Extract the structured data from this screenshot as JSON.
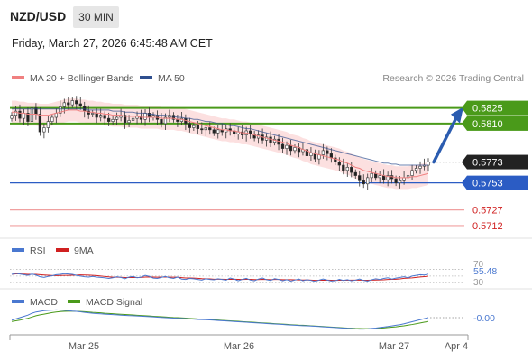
{
  "header": {
    "pair": "NZD/USD",
    "timeframe": "30 MIN",
    "datetime": "Friday, March 27, 2026 6:45:48 AM CET"
  },
  "legend": {
    "ma20_label": "MA 20 + Bollinger Bands",
    "ma20_color": "#f08080",
    "ma50_label": "MA 50",
    "ma50_color": "#2f4f8f",
    "copyright": "Research © 2026 Trading Central"
  },
  "colors": {
    "resistance": "#4a9a1a",
    "support": "#2b5cc4",
    "target_red": "#f0a0a0",
    "arrow": "#2b5cb0",
    "current_price_bg": "#222222"
  },
  "chart_data": {
    "type": "candlestick",
    "y_range": [
      0.5705,
      0.5842
    ],
    "levels": [
      {
        "label": "0.5825",
        "value": 0.5825,
        "kind": "resistance"
      },
      {
        "label": "0.5810",
        "value": 0.581,
        "kind": "resistance"
      },
      {
        "label": "0.5773",
        "value": 0.5773,
        "kind": "current"
      },
      {
        "label": "0.5753",
        "value": 0.5753,
        "kind": "support"
      },
      {
        "label": "0.5727",
        "value": 0.5727,
        "kind": "target"
      },
      {
        "label": "0.5712",
        "value": 0.5712,
        "kind": "target"
      }
    ],
    "x_labels": [
      "Mar 25",
      "Mar 26",
      "Mar 27",
      "Apr 4"
    ],
    "closes": [
      0.5818,
      0.5822,
      0.5815,
      0.582,
      0.5812,
      0.5825,
      0.5819,
      0.5802,
      0.5806,
      0.5812,
      0.5816,
      0.582,
      0.5826,
      0.583,
      0.5828,
      0.5832,
      0.5829,
      0.5827,
      0.5822,
      0.5819,
      0.582,
      0.5816,
      0.5818,
      0.5815,
      0.5812,
      0.5814,
      0.5816,
      0.5818,
      0.5811,
      0.5813,
      0.5815,
      0.5817,
      0.5814,
      0.582,
      0.5816,
      0.5818,
      0.5814,
      0.581,
      0.5816,
      0.5818,
      0.5814,
      0.5812,
      0.5815,
      0.581,
      0.5806,
      0.5808,
      0.5805,
      0.5804,
      0.5806,
      0.5804,
      0.5801,
      0.5804,
      0.5802,
      0.5805,
      0.5803,
      0.58,
      0.5802,
      0.5799,
      0.5803,
      0.58,
      0.5796,
      0.5799,
      0.5794,
      0.5797,
      0.5792,
      0.5795,
      0.579,
      0.5786,
      0.5789,
      0.5784,
      0.5787,
      0.5783,
      0.5785,
      0.5779,
      0.5782,
      0.5776,
      0.578,
      0.5784,
      0.5781,
      0.5777,
      0.5773,
      0.577,
      0.5765,
      0.5768,
      0.5763,
      0.576,
      0.5755,
      0.5752,
      0.5758,
      0.5762,
      0.5758,
      0.576,
      0.5756,
      0.576,
      0.5757,
      0.5753,
      0.5755,
      0.5758,
      0.576,
      0.5765,
      0.5767,
      0.5769,
      0.577,
      0.5773
    ],
    "ma20": [
      0.5821,
      0.5821,
      0.582,
      0.582,
      0.5819,
      0.5819,
      0.5819,
      0.5818,
      0.5818,
      0.5818,
      0.5819,
      0.582,
      0.5821,
      0.5822,
      0.5823,
      0.5823,
      0.5823,
      0.5822,
      0.5822,
      0.5821,
      0.5821,
      0.582,
      0.582,
      0.5819,
      0.5819,
      0.5818,
      0.5818,
      0.5818,
      0.5817,
      0.5817,
      0.5817,
      0.5817,
      0.5816,
      0.5816,
      0.5816,
      0.5816,
      0.5816,
      0.5815,
      0.5815,
      0.5815,
      0.5815,
      0.5814,
      0.5814,
      0.5813,
      0.5812,
      0.5811,
      0.581,
      0.5809,
      0.5808,
      0.5807,
      0.5806,
      0.5805,
      0.5804,
      0.5804,
      0.5803,
      0.5803,
      0.5802,
      0.5801,
      0.5801,
      0.58,
      0.5799,
      0.5798,
      0.5797,
      0.5796,
      0.5795,
      0.5794,
      0.5793,
      0.5792,
      0.5791,
      0.5789,
      0.5788,
      0.5787,
      0.5785,
      0.5784,
      0.5782,
      0.5781,
      0.578,
      0.5779,
      0.5778,
      0.5777,
      0.5776,
      0.5775,
      0.5773,
      0.5772,
      0.577,
      0.5768,
      0.5767,
      0.5765,
      0.5764,
      0.5763,
      0.5762,
      0.5761,
      0.576,
      0.5759,
      0.5759,
      0.5758,
      0.5758,
      0.5758,
      0.5758,
      0.5759,
      0.5759,
      0.576,
      0.5761,
      0.5762
    ],
    "ma50": [
      0.5824,
      0.5824,
      0.5824,
      0.5824,
      0.5824,
      0.5824,
      0.5824,
      0.5824,
      0.5824,
      0.5824,
      0.5824,
      0.5824,
      0.5824,
      0.5824,
      0.5824,
      0.5824,
      0.5824,
      0.5824,
      0.5824,
      0.5823,
      0.5823,
      0.5823,
      0.5823,
      0.5823,
      0.5823,
      0.5822,
      0.5822,
      0.5822,
      0.5821,
      0.5821,
      0.5821,
      0.582,
      0.582,
      0.582,
      0.5819,
      0.5819,
      0.5818,
      0.5818,
      0.5818,
      0.5817,
      0.5817,
      0.5816,
      0.5816,
      0.5815,
      0.5815,
      0.5814,
      0.5814,
      0.5813,
      0.5812,
      0.5812,
      0.5811,
      0.581,
      0.581,
      0.5809,
      0.5808,
      0.5808,
      0.5807,
      0.5806,
      0.5805,
      0.5805,
      0.5804,
      0.5803,
      0.5802,
      0.5801,
      0.58,
      0.5799,
      0.5798,
      0.5797,
      0.5796,
      0.5795,
      0.5794,
      0.5793,
      0.5792,
      0.5791,
      0.579,
      0.5789,
      0.5788,
      0.5787,
      0.5786,
      0.5785,
      0.5784,
      0.5783,
      0.5782,
      0.5781,
      0.578,
      0.5779,
      0.5778,
      0.5777,
      0.5776,
      0.5775,
      0.5774,
      0.5773,
      0.5772,
      0.5772,
      0.5771,
      0.5771,
      0.577,
      0.577,
      0.577,
      0.577,
      0.577,
      0.577,
      0.577,
      0.577
    ],
    "bb_width": 0.0011,
    "projection": {
      "from": 0.5773,
      "to": 0.5825
    },
    "rsi": {
      "label": "RSI",
      "color": "#4a78d0",
      "signal_label": "9MA",
      "signal_color": "#d02020",
      "value_label": "55.48",
      "ticks": [
        "70",
        "30"
      ],
      "values": [
        55,
        58,
        56,
        54,
        52,
        56,
        53,
        48,
        46,
        49,
        51,
        54,
        55,
        57,
        56,
        55,
        52,
        50,
        48,
        47,
        49,
        47,
        46,
        45,
        43,
        45,
        48,
        46,
        42,
        47,
        49,
        45,
        47,
        52,
        49,
        44,
        43,
        46,
        49,
        45,
        43,
        47,
        41,
        40,
        43,
        42,
        40,
        38,
        42,
        40,
        39,
        42,
        40,
        38,
        44,
        41,
        36,
        40,
        43,
        38,
        36,
        41,
        44,
        39,
        37,
        42,
        40,
        36,
        39,
        35,
        38,
        41,
        36,
        39,
        37,
        34,
        38,
        41,
        38,
        35,
        36,
        40,
        37,
        39,
        36,
        38,
        41,
        37,
        35,
        39,
        42,
        40,
        43,
        45,
        41,
        44,
        46,
        48,
        45,
        50,
        52,
        54,
        53,
        55.48
      ]
    },
    "macd": {
      "label": "MACD",
      "color": "#4a78d0",
      "signal_label": "MACD Signal",
      "signal_color": "#4a9a1a",
      "value_label": "-0.00",
      "values": [
        -0.2,
        -0.1,
        0.0,
        0.1,
        0.2,
        0.35,
        0.45,
        0.5,
        0.55,
        0.58,
        0.6,
        0.62,
        0.6,
        0.58,
        0.55,
        0.52,
        0.5,
        0.46,
        0.42,
        0.38,
        0.35,
        0.32,
        0.3,
        0.28,
        0.26,
        0.24,
        0.22,
        0.2,
        0.18,
        0.16,
        0.15,
        0.13,
        0.12,
        0.1,
        0.08,
        0.06,
        0.04,
        0.02,
        0.0,
        -0.02,
        -0.04,
        -0.05,
        -0.06,
        -0.08,
        -0.1,
        -0.12,
        -0.14,
        -0.15,
        -0.16,
        -0.18,
        -0.2,
        -0.22,
        -0.24,
        -0.26,
        -0.28,
        -0.3,
        -0.32,
        -0.34,
        -0.36,
        -0.38,
        -0.4,
        -0.42,
        -0.44,
        -0.46,
        -0.48,
        -0.5,
        -0.52,
        -0.54,
        -0.56,
        -0.58,
        -0.6,
        -0.62,
        -0.63,
        -0.64,
        -0.66,
        -0.68,
        -0.7,
        -0.72,
        -0.74,
        -0.76,
        -0.78,
        -0.8,
        -0.82,
        -0.84,
        -0.86,
        -0.88,
        -0.9,
        -0.9,
        -0.88,
        -0.85,
        -0.82,
        -0.78,
        -0.74,
        -0.7,
        -0.65,
        -0.6,
        -0.55,
        -0.48,
        -0.4,
        -0.32,
        -0.24,
        -0.16,
        -0.08,
        0.0
      ],
      "signal": [
        -0.3,
        -0.25,
        -0.2,
        -0.12,
        -0.05,
        0.05,
        0.15,
        0.22,
        0.28,
        0.34,
        0.4,
        0.45,
        0.48,
        0.5,
        0.51,
        0.51,
        0.5,
        0.49,
        0.47,
        0.45,
        0.42,
        0.4,
        0.38,
        0.35,
        0.33,
        0.31,
        0.29,
        0.27,
        0.25,
        0.23,
        0.21,
        0.19,
        0.17,
        0.15,
        0.13,
        0.11,
        0.09,
        0.07,
        0.05,
        0.03,
        0.01,
        0.0,
        -0.02,
        -0.04,
        -0.06,
        -0.08,
        -0.1,
        -0.11,
        -0.13,
        -0.15,
        -0.17,
        -0.19,
        -0.21,
        -0.23,
        -0.25,
        -0.27,
        -0.29,
        -0.31,
        -0.33,
        -0.35,
        -0.37,
        -0.39,
        -0.41,
        -0.43,
        -0.45,
        -0.47,
        -0.49,
        -0.51,
        -0.53,
        -0.55,
        -0.57,
        -0.59,
        -0.6,
        -0.62,
        -0.64,
        -0.66,
        -0.68,
        -0.7,
        -0.72,
        -0.74,
        -0.76,
        -0.78,
        -0.8,
        -0.82,
        -0.83,
        -0.85,
        -0.86,
        -0.87,
        -0.87,
        -0.86,
        -0.85,
        -0.83,
        -0.81,
        -0.78,
        -0.75,
        -0.72,
        -0.68,
        -0.64,
        -0.59,
        -0.54,
        -0.48,
        -0.42,
        -0.36,
        -0.3
      ]
    }
  }
}
